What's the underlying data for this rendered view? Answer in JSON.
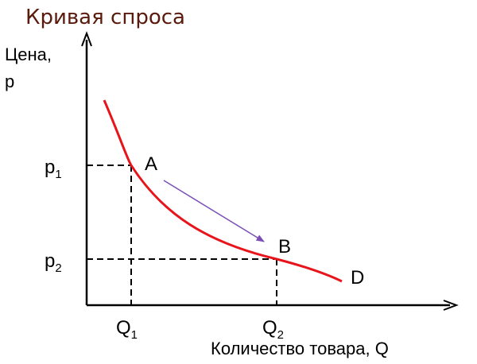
{
  "title": "Кривая спроса",
  "y_axis_label": {
    "line1": "Цена,",
    "line2": "р"
  },
  "x_axis_label": "Количество товара, Q",
  "price_ticks": [
    {
      "base": "p",
      "sub": "1"
    },
    {
      "base": "p",
      "sub": "2"
    }
  ],
  "quantity_ticks": [
    {
      "base": "Q",
      "sub": "1"
    },
    {
      "base": "Q",
      "sub": "2"
    }
  ],
  "points": {
    "a": "A",
    "b": "B"
  },
  "curve_label": "D",
  "colors": {
    "title": "#5a1a0c",
    "curve": "#e8141b",
    "arrow": "#7a4fb5",
    "axes": "#000000"
  }
}
